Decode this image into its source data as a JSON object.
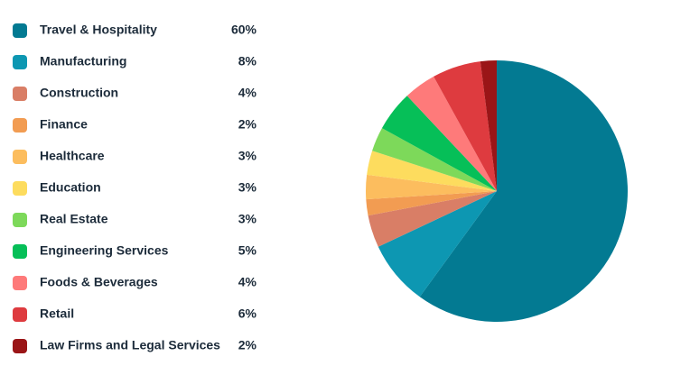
{
  "chart_data": {
    "type": "pie",
    "categories": [
      "Travel & Hospitality",
      "Manufacturing",
      "Construction",
      "Finance",
      "Healthcare",
      "Education",
      "Real Estate",
      "Engineering Services",
      "Foods & Beverages",
      "Retail",
      "Law Firms and Legal Services"
    ],
    "values": [
      60,
      8,
      4,
      2,
      3,
      3,
      3,
      5,
      4,
      6,
      2
    ],
    "value_labels": [
      "60%",
      "8%",
      "4%",
      "2%",
      "3%",
      "3%",
      "3%",
      "5%",
      "4%",
      "6%",
      "2%"
    ],
    "colors": [
      "#037a92",
      "#0d97b2",
      "#d97e66",
      "#f29c52",
      "#fcbd5e",
      "#fddc5e",
      "#7dd95a",
      "#06bf58",
      "#fe7a7a",
      "#de3b3f",
      "#9a1517"
    ],
    "start_angle": 0,
    "direction": "clockwise"
  }
}
